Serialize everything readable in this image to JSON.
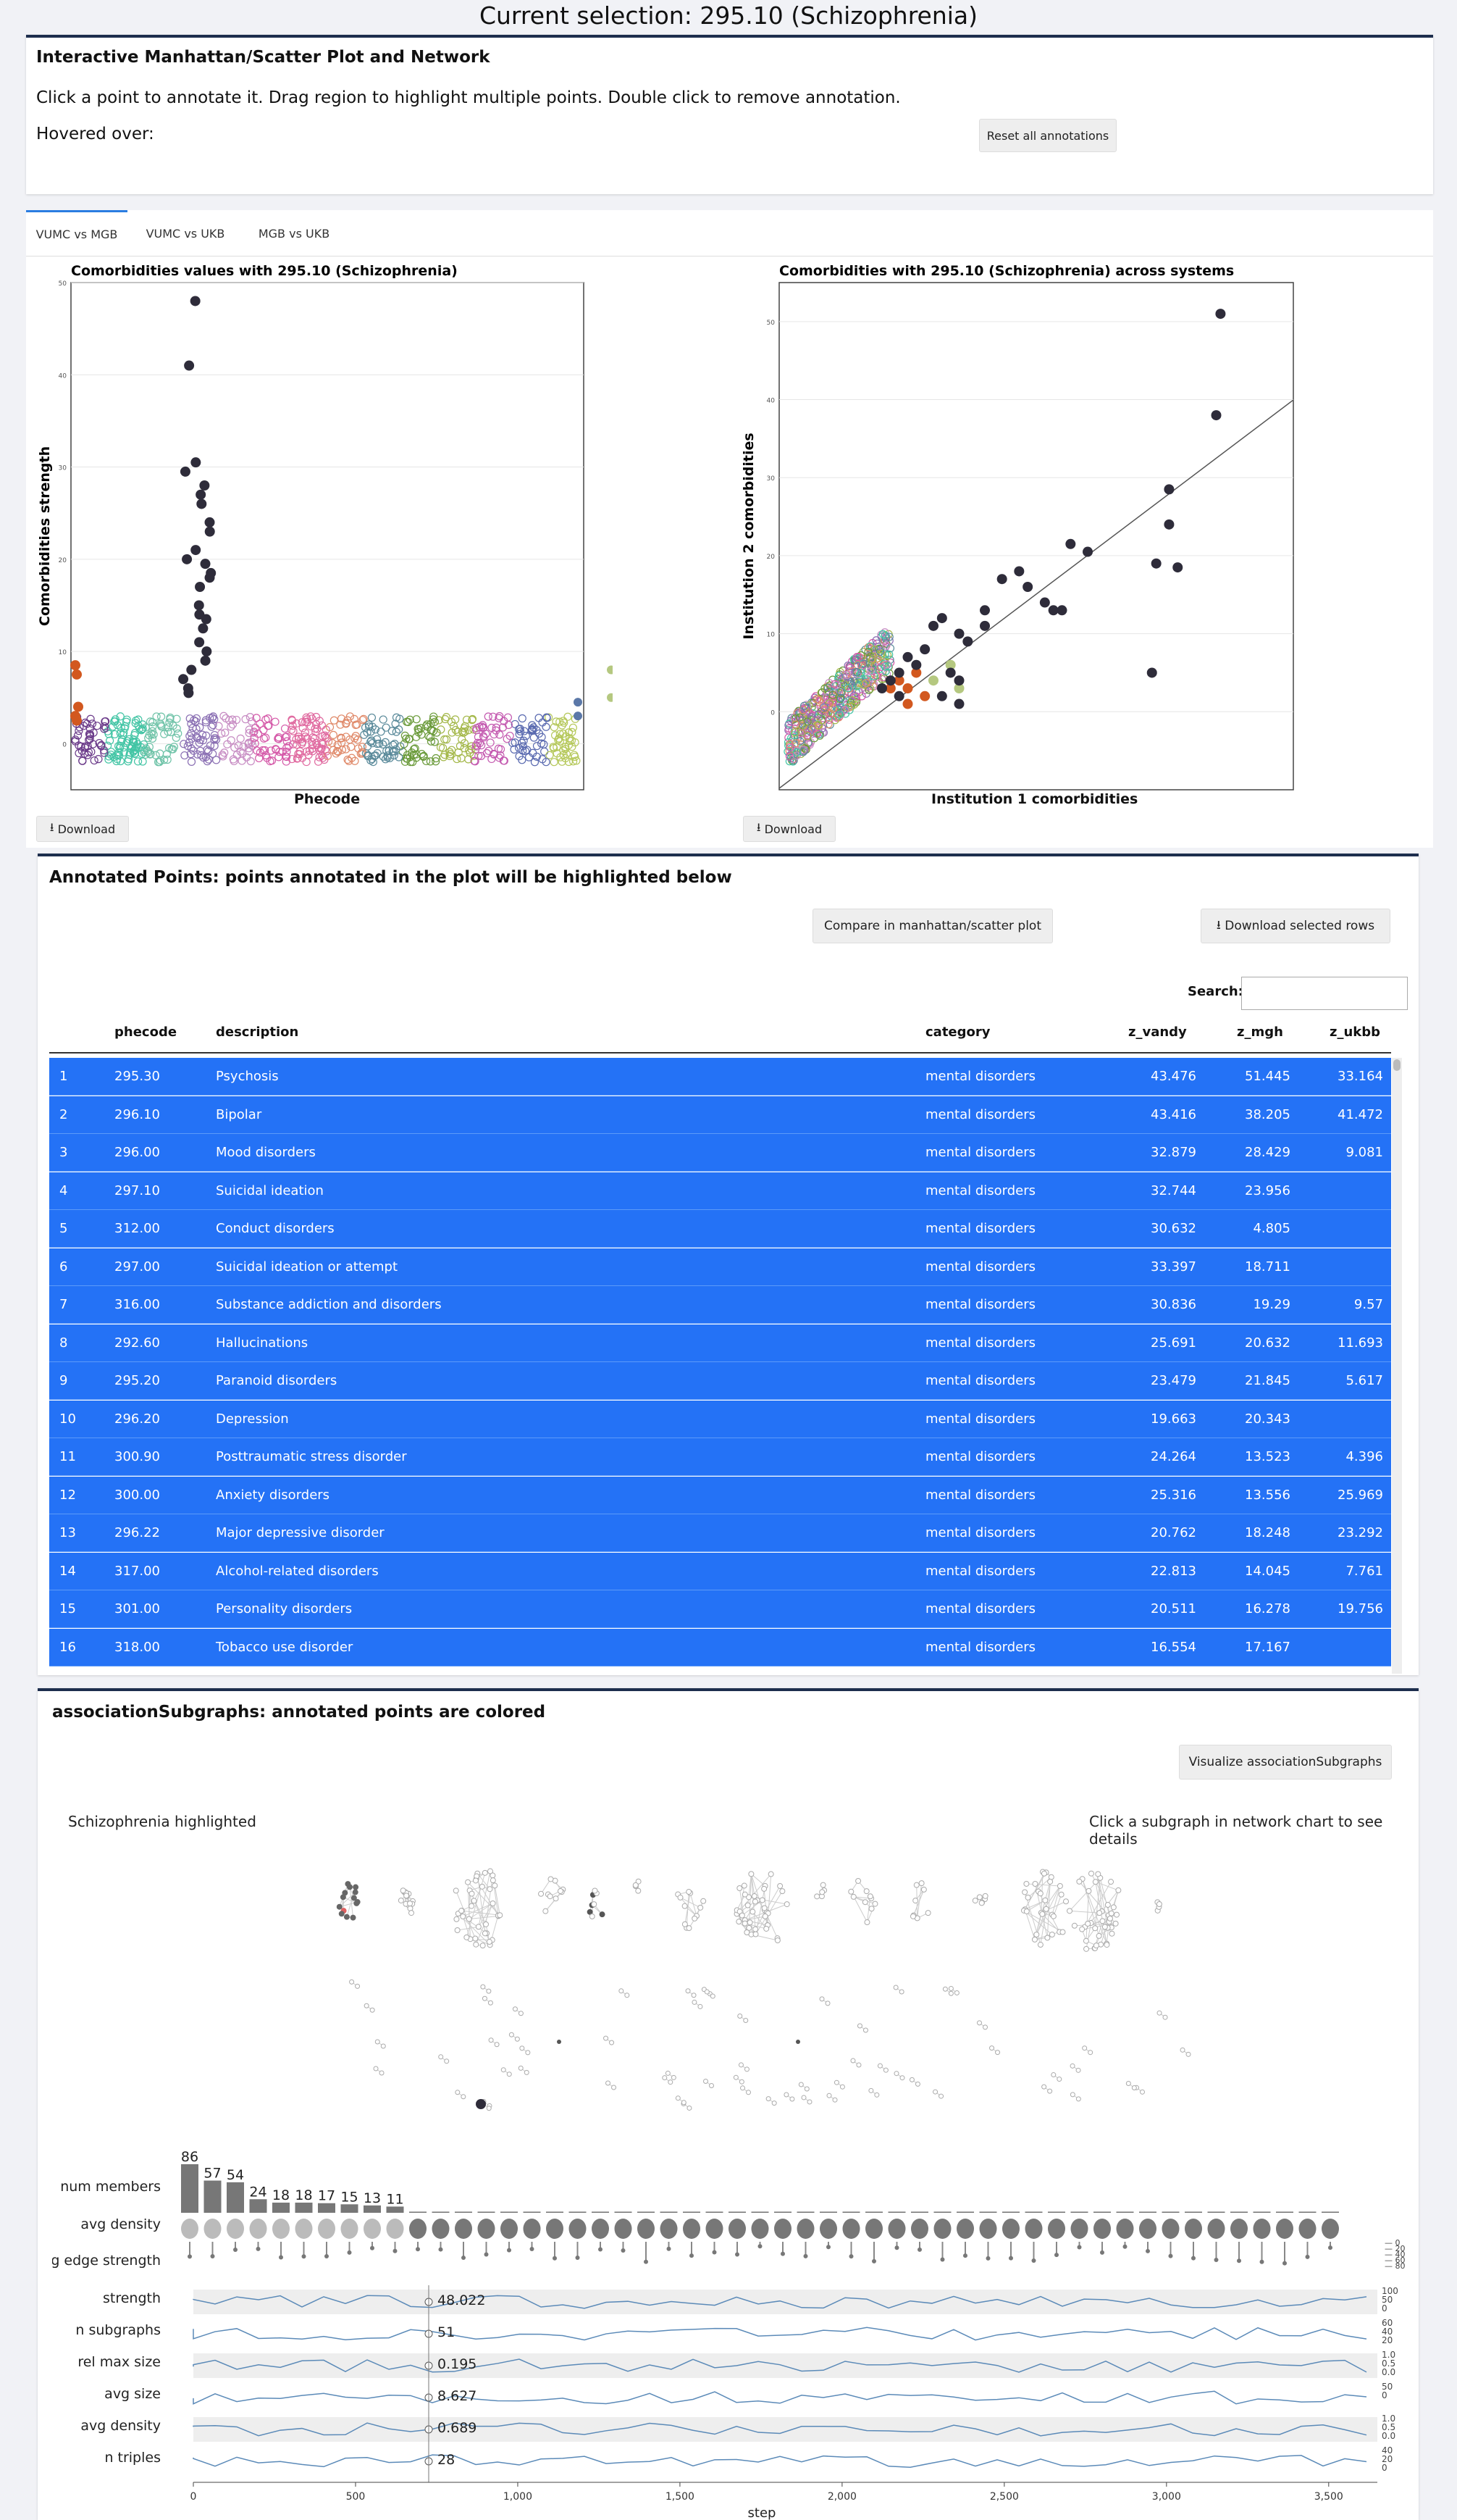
{
  "title": "Current selection: 295.10 (Schizophrenia)",
  "manhattan_panel": {
    "heading": "Interactive Manhattan/Scatter Plot and Network",
    "instructions": "Click a point to annotate it. Drag region to highlight multiple points. Double click to remove annotation.",
    "hovered_label": "Hovered over:",
    "reset_button": "Reset all annotations"
  },
  "tabs": [
    "VUMC vs MGB",
    "VUMC vs UKB",
    "MGB vs UKB"
  ],
  "download_label": "Download",
  "chart_data": [
    {
      "type": "scatter",
      "title": "Comorbidities values with 295.10 (Schizophrenia)",
      "xlabel": "Phecode",
      "ylabel": "Comorbidities strength",
      "ylim": [
        -5,
        50
      ],
      "yticks": [
        0,
        10,
        20,
        30,
        40,
        50
      ],
      "highlighted_points_y": [
        48,
        41,
        30.5,
        29.5,
        28,
        27,
        26,
        24,
        23,
        21,
        20,
        19.5,
        18.5,
        18,
        17,
        15,
        14,
        13.5,
        12.5,
        11,
        10,
        9,
        8,
        7,
        6,
        5.5
      ]
    },
    {
      "type": "scatter",
      "title": "Comorbidities with 295.10 (Schizophrenia) across systems",
      "xlabel": "Institution 1 comorbidities",
      "ylabel": "Institution 2 comorbidities",
      "ylim": [
        -10,
        55
      ],
      "yticks": [
        0,
        10,
        20,
        30,
        40,
        50
      ],
      "highlighted_points": [
        [
          51.5,
          51
        ],
        [
          51,
          38
        ],
        [
          45.5,
          28.5
        ],
        [
          45.5,
          24
        ],
        [
          46.5,
          18.5
        ],
        [
          44,
          19
        ],
        [
          43.5,
          5
        ],
        [
          36,
          20.5
        ],
        [
          34,
          21.5
        ],
        [
          33,
          13
        ],
        [
          32,
          13
        ],
        [
          31,
          14
        ],
        [
          29,
          16
        ],
        [
          28,
          18
        ],
        [
          26,
          17
        ],
        [
          24,
          13
        ],
        [
          24,
          11
        ],
        [
          22,
          9
        ],
        [
          21,
          10
        ],
        [
          19,
          12
        ],
        [
          18,
          11
        ],
        [
          17,
          8
        ],
        [
          16,
          6
        ],
        [
          15,
          7
        ],
        [
          14,
          5
        ],
        [
          13,
          4
        ],
        [
          14,
          2
        ],
        [
          12,
          3
        ],
        [
          20,
          5
        ],
        [
          21,
          4
        ],
        [
          19,
          2
        ],
        [
          21,
          1
        ]
      ]
    }
  ],
  "table": {
    "heading": "Annotated Points: points annotated in the plot will be highlighted below",
    "compare_button": "Compare in manhattan/scatter plot",
    "download_rows_button": "Download selected rows",
    "search_label": "Search:",
    "columns": [
      "phecode",
      "description",
      "category",
      "z_vandy",
      "z_mgh",
      "z_ukbb"
    ],
    "rows": [
      [
        "1",
        "295.30",
        "Psychosis",
        "mental disorders",
        "43.476",
        "51.445",
        "33.164"
      ],
      [
        "2",
        "296.10",
        "Bipolar",
        "mental disorders",
        "43.416",
        "38.205",
        "41.472"
      ],
      [
        "3",
        "296.00",
        "Mood disorders",
        "mental disorders",
        "32.879",
        "28.429",
        "9.081"
      ],
      [
        "4",
        "297.10",
        "Suicidal ideation",
        "mental disorders",
        "32.744",
        "23.956",
        ""
      ],
      [
        "5",
        "312.00",
        "Conduct disorders",
        "mental disorders",
        "30.632",
        "4.805",
        ""
      ],
      [
        "6",
        "297.00",
        "Suicidal ideation or attempt",
        "mental disorders",
        "33.397",
        "18.711",
        ""
      ],
      [
        "7",
        "316.00",
        "Substance addiction and disorders",
        "mental disorders",
        "30.836",
        "19.29",
        "9.57"
      ],
      [
        "8",
        "292.60",
        "Hallucinations",
        "mental disorders",
        "25.691",
        "20.632",
        "11.693"
      ],
      [
        "9",
        "295.20",
        "Paranoid disorders",
        "mental disorders",
        "23.479",
        "21.845",
        "5.617"
      ],
      [
        "10",
        "296.20",
        "Depression",
        "mental disorders",
        "19.663",
        "20.343",
        ""
      ],
      [
        "11",
        "300.90",
        "Posttraumatic stress disorder",
        "mental disorders",
        "24.264",
        "13.523",
        "4.396"
      ],
      [
        "12",
        "300.00",
        "Anxiety disorders",
        "mental disorders",
        "25.316",
        "13.556",
        "25.969"
      ],
      [
        "13",
        "296.22",
        "Major depressive disorder",
        "mental disorders",
        "20.762",
        "18.248",
        "23.292"
      ],
      [
        "14",
        "317.00",
        "Alcohol-related disorders",
        "mental disorders",
        "22.813",
        "14.045",
        "7.761"
      ],
      [
        "15",
        "301.00",
        "Personality disorders",
        "mental disorders",
        "20.511",
        "16.278",
        "19.756"
      ],
      [
        "16",
        "318.00",
        "Tobacco use disorder",
        "mental disorders",
        "16.554",
        "17.167",
        ""
      ]
    ]
  },
  "network": {
    "heading": "associationSubgraphs: annotated points are colored",
    "visualize_button": "Visualize associationSubgraphs",
    "highlight_note": "Schizophrenia highlighted",
    "hint": "Click a subgraph in network chart to see details",
    "upset": {
      "labels": [
        "num members",
        "avg density",
        "avg edge strength"
      ],
      "top_counts": [
        "86",
        "57",
        "54",
        "24",
        "18",
        "18",
        "17",
        "15",
        "13",
        "11"
      ],
      "strength_ticks": [
        "0",
        "20",
        "40",
        "60",
        "80"
      ]
    },
    "trace": {
      "rows": [
        {
          "label": "strength",
          "value": "48.022",
          "ticks": [
            "100",
            "50",
            "0"
          ]
        },
        {
          "label": "n subgraphs",
          "value": "51",
          "ticks": [
            "60",
            "40",
            "20"
          ]
        },
        {
          "label": "rel max size",
          "value": "0.195",
          "ticks": [
            "1.0",
            "0.5",
            "0.0"
          ]
        },
        {
          "label": "avg size",
          "value": "8.627",
          "ticks": [
            "50",
            "0"
          ]
        },
        {
          "label": "avg density",
          "value": "0.689",
          "ticks": [
            "1.0",
            "0.5",
            "0.0"
          ]
        },
        {
          "label": "n triples",
          "value": "28",
          "ticks": [
            "40",
            "20",
            "0"
          ]
        }
      ],
      "xticks": [
        "0",
        "500",
        "1,000",
        "1,500",
        "2,000",
        "2,500",
        "3,000",
        "3,500"
      ],
      "xlabel": "step"
    }
  }
}
